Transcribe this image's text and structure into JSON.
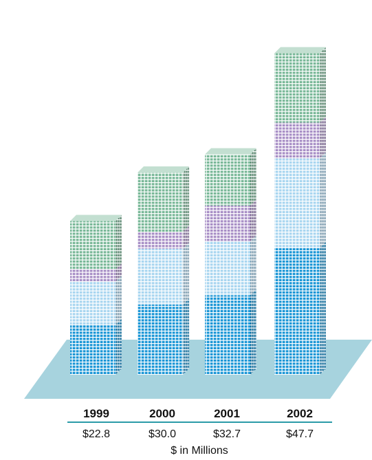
{
  "chart_data": {
    "type": "bar",
    "stacked": true,
    "three_d": true,
    "categories": [
      "1999",
      "2000",
      "2001",
      "2002"
    ],
    "totals": [
      22.8,
      30.0,
      32.7,
      47.7
    ],
    "total_labels": [
      "$22.8",
      "$30.0",
      "$32.7",
      "$47.7"
    ],
    "series": [
      {
        "values": [
          7.4,
          10.4,
          11.8,
          18.8
        ],
        "color": "#1a96d6"
      },
      {
        "values": [
          6.4,
          8.3,
          8.0,
          13.3
        ],
        "color": "#a9d6f0"
      },
      {
        "values": [
          1.8,
          2.5,
          5.3,
          5.3
        ],
        "color": "#a88fc6"
      },
      {
        "values": [
          7.2,
          8.8,
          7.6,
          10.3
        ],
        "color": "#79b898"
      }
    ],
    "xlabel": "$ in Millions",
    "ylim": [
      0,
      50
    ],
    "grid": false,
    "legend": "none",
    "base_color": "#a7d3de",
    "divider_color": "#2a9aa8"
  }
}
